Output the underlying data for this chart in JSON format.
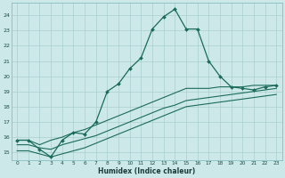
{
  "xlabel": "Humidex (Indice chaleur)",
  "bg_color": "#cce8e8",
  "grid_color": "#aacfcf",
  "line_color": "#1a6b5a",
  "xlim": [
    -0.5,
    23.5
  ],
  "ylim": [
    14.5,
    24.8
  ],
  "yticks": [
    15,
    16,
    17,
    18,
    19,
    20,
    21,
    22,
    23,
    24
  ],
  "xticks": [
    0,
    1,
    2,
    3,
    4,
    5,
    6,
    7,
    8,
    9,
    10,
    11,
    12,
    13,
    14,
    15,
    16,
    17,
    18,
    19,
    20,
    21,
    22,
    23
  ],
  "line1_x": [
    0,
    1,
    2,
    3,
    4,
    5,
    6,
    7,
    8,
    9,
    10,
    11,
    12,
    13,
    14,
    15,
    16,
    17,
    18,
    19,
    20,
    21,
    22,
    23
  ],
  "line1_y": [
    15.8,
    15.8,
    15.2,
    14.7,
    15.8,
    16.3,
    16.2,
    17.0,
    19.0,
    19.5,
    20.5,
    21.2,
    23.1,
    23.9,
    24.4,
    23.1,
    23.1,
    21.0,
    20.0,
    19.3,
    19.2,
    19.1,
    19.3,
    19.4
  ],
  "line2_x": [
    0,
    1,
    2,
    3,
    4,
    5,
    6,
    7,
    8,
    9,
    10,
    11,
    12,
    13,
    14,
    15,
    16,
    17,
    18,
    19,
    20,
    21,
    22,
    23
  ],
  "line2_y": [
    15.8,
    15.8,
    15.5,
    15.8,
    16.0,
    16.3,
    16.5,
    16.8,
    17.1,
    17.4,
    17.7,
    18.0,
    18.3,
    18.6,
    18.9,
    19.2,
    19.2,
    19.2,
    19.3,
    19.3,
    19.3,
    19.4,
    19.4,
    19.4
  ],
  "line3_x": [
    0,
    1,
    2,
    3,
    4,
    5,
    6,
    7,
    8,
    9,
    10,
    11,
    12,
    13,
    14,
    15,
    16,
    17,
    18,
    19,
    20,
    21,
    22,
    23
  ],
  "line3_y": [
    15.5,
    15.5,
    15.3,
    15.2,
    15.5,
    15.7,
    15.9,
    16.1,
    16.4,
    16.7,
    17.0,
    17.3,
    17.6,
    17.9,
    18.1,
    18.4,
    18.5,
    18.6,
    18.7,
    18.8,
    18.9,
    19.0,
    19.1,
    19.2
  ],
  "line4_x": [
    0,
    1,
    2,
    3,
    4,
    5,
    6,
    7,
    8,
    9,
    10,
    11,
    12,
    13,
    14,
    15,
    16,
    17,
    18,
    19,
    20,
    21,
    22,
    23
  ],
  "line4_y": [
    15.1,
    15.1,
    14.9,
    14.7,
    14.9,
    15.1,
    15.3,
    15.6,
    15.9,
    16.2,
    16.5,
    16.8,
    17.1,
    17.4,
    17.7,
    18.0,
    18.1,
    18.2,
    18.3,
    18.4,
    18.5,
    18.6,
    18.7,
    18.8
  ]
}
